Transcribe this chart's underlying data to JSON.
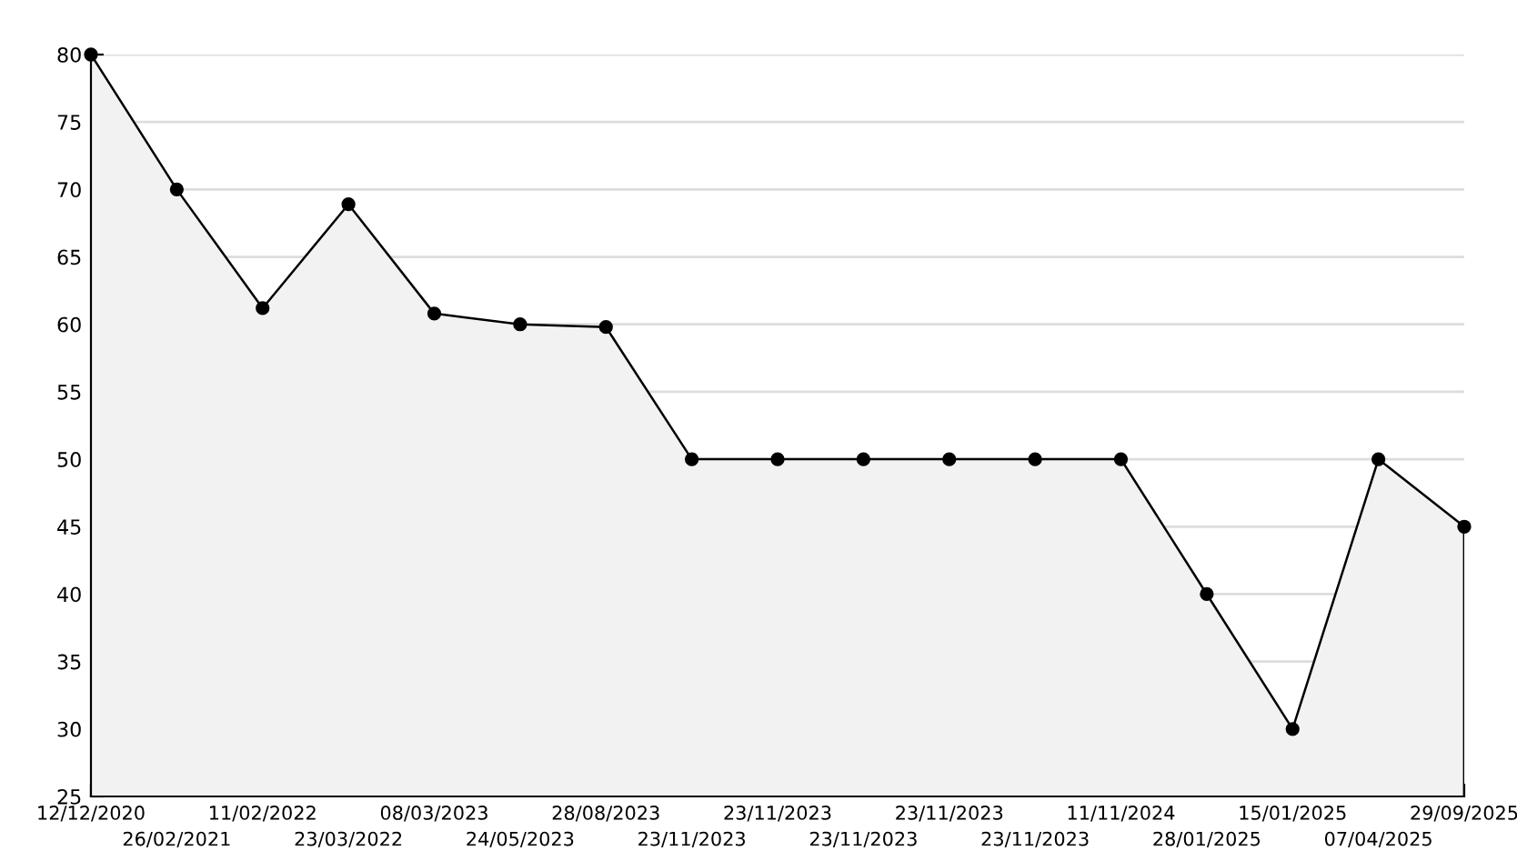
{
  "chart_data": {
    "type": "area",
    "categories": [
      "12/12/2020",
      "26/02/2021",
      "11/02/2022",
      "23/03/2022",
      "08/03/2023",
      "24/05/2023",
      "28/08/2023",
      "23/11/2023",
      "23/11/2023",
      "23/11/2023",
      "23/11/2023",
      "23/11/2023",
      "11/11/2024",
      "28/01/2025",
      "15/01/2025",
      "07/04/2025",
      "29/09/2025"
    ],
    "series": [
      {
        "color": "#f2f2f2",
        "values": [
          80,
          70,
          61.2,
          68.9,
          60.8,
          60,
          59.8,
          50,
          50,
          50,
          50,
          50,
          50,
          40,
          30,
          50,
          45
        ]
      }
    ],
    "ylim": [
      25,
      80
    ],
    "yticks": [
      25,
      30,
      35,
      40,
      45,
      50,
      55,
      60,
      65,
      70,
      75,
      80
    ],
    "grid": "y",
    "marker": "circle",
    "line_style": "solid"
  }
}
